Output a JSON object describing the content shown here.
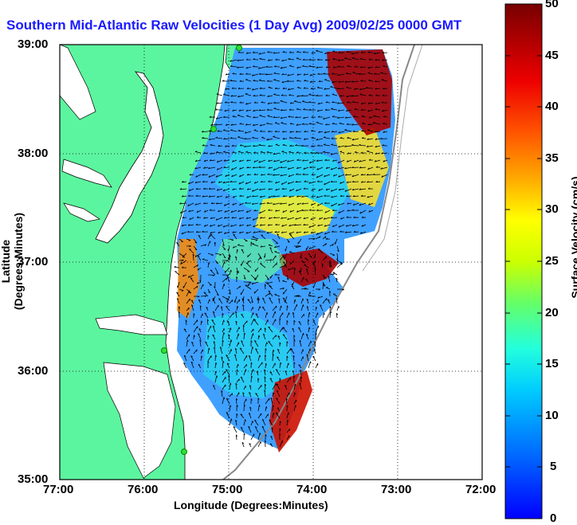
{
  "title": "Southern Mid-Atlantic Raw Velocities (1 Day Avg) 2009/02/25 0000 GMT",
  "axes": {
    "xlabel": "Longitude (Degrees:Minutes)",
    "ylabel": "Latitude (Degrees:Minutes)",
    "xticks": [
      "77:00",
      "76:00",
      "75:00",
      "74:00",
      "73:00",
      "72:00"
    ],
    "yticks": [
      "39:00",
      "38:00",
      "37:00",
      "36:00",
      "35:00"
    ]
  },
  "colorbar": {
    "label": "Surface Velocity (cm/s)",
    "ticks": [
      "50",
      "45",
      "40",
      "35",
      "30",
      "25",
      "20",
      "15",
      "10",
      "5",
      "0"
    ],
    "min": 0,
    "max": 50
  },
  "colors": {
    "land": "#5cf59f",
    "title": "#1a1aff",
    "station": "#33dd33"
  }
}
